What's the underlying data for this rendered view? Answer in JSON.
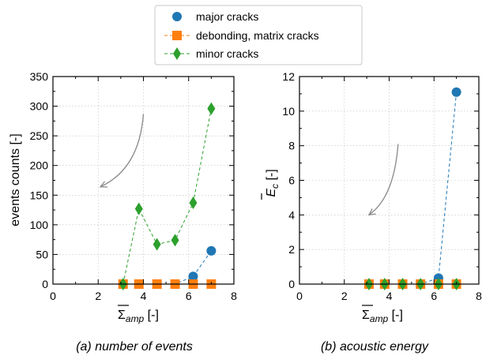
{
  "legend": {
    "placement": "top-center",
    "entries": [
      {
        "label": "major cracks",
        "color": "#1f77b4",
        "marker": "circle"
      },
      {
        "label": "debonding, matrix cracks",
        "color": "#ff7f0e",
        "marker": "square"
      },
      {
        "label": "minor cracks",
        "color": "#2ca02c",
        "marker": "diamond"
      }
    ]
  },
  "chart_data": [
    {
      "type": "line",
      "caption": "(a) number of events",
      "ylabel": "events counts [-]",
      "xlabel_main": "Σ",
      "xlabel_sub": "amp",
      "xlabel_unit": " [-]",
      "xlim": [
        0,
        8
      ],
      "ylim": [
        0,
        350
      ],
      "xticks": [
        0,
        2,
        4,
        6,
        8
      ],
      "yticks": [
        0,
        50,
        100,
        150,
        200,
        250,
        300,
        350
      ],
      "grid": true,
      "series": [
        {
          "name": "major cracks",
          "marker": "circle",
          "color": "#1f77b4",
          "x": [
            3.1,
            3.8,
            4.6,
            5.4,
            6.2,
            7.0
          ],
          "y": [
            0,
            0,
            0,
            0,
            13,
            56
          ]
        },
        {
          "name": "debonding, matrix cracks",
          "marker": "square",
          "color": "#ff7f0e",
          "x": [
            3.1,
            3.8,
            4.6,
            5.4,
            6.2,
            7.0
          ],
          "y": [
            0,
            0,
            0,
            0,
            0,
            0
          ]
        },
        {
          "name": "minor cracks",
          "marker": "diamond",
          "color": "#2ca02c",
          "x": [
            3.1,
            3.8,
            4.6,
            5.4,
            6.2,
            7.0
          ],
          "y": [
            0,
            127,
            67,
            74,
            137,
            296
          ]
        }
      ],
      "arrow": {
        "from": [
          4.0,
          287
        ],
        "to": [
          2.1,
          164
        ]
      }
    },
    {
      "type": "line",
      "caption": "(b) acoustic energy",
      "ylabel_main": "E",
      "ylabel_sub": "c",
      "ylabel_unit": " [-]",
      "xlabel_main": "Σ",
      "xlabel_sub": "amp",
      "xlabel_unit": " [-]",
      "xlim": [
        0,
        8
      ],
      "ylim": [
        0,
        12
      ],
      "xticks": [
        0,
        2,
        4,
        6,
        8
      ],
      "yticks": [
        0,
        2,
        4,
        6,
        8,
        10,
        12
      ],
      "grid": true,
      "series": [
        {
          "name": "major cracks",
          "marker": "circle",
          "color": "#1f77b4",
          "x": [
            3.1,
            3.8,
            4.6,
            5.4,
            6.2,
            7.0
          ],
          "y": [
            0,
            0,
            0,
            0,
            0.35,
            11.1
          ]
        },
        {
          "name": "debonding, matrix cracks",
          "marker": "square",
          "color": "#ff7f0e",
          "x": [
            3.1,
            3.8,
            4.6,
            5.4,
            6.2,
            7.0
          ],
          "y": [
            0,
            0,
            0,
            0,
            0,
            0
          ]
        },
        {
          "name": "minor cracks",
          "marker": "diamond",
          "color": "#2ca02c",
          "x": [
            3.1,
            3.8,
            4.6,
            5.4,
            6.2,
            7.0
          ],
          "y": [
            0,
            0,
            0,
            0,
            0,
            0
          ]
        }
      ],
      "arrow": {
        "from": [
          4.4,
          8.1
        ],
        "to": [
          3.1,
          4.0
        ]
      }
    }
  ]
}
